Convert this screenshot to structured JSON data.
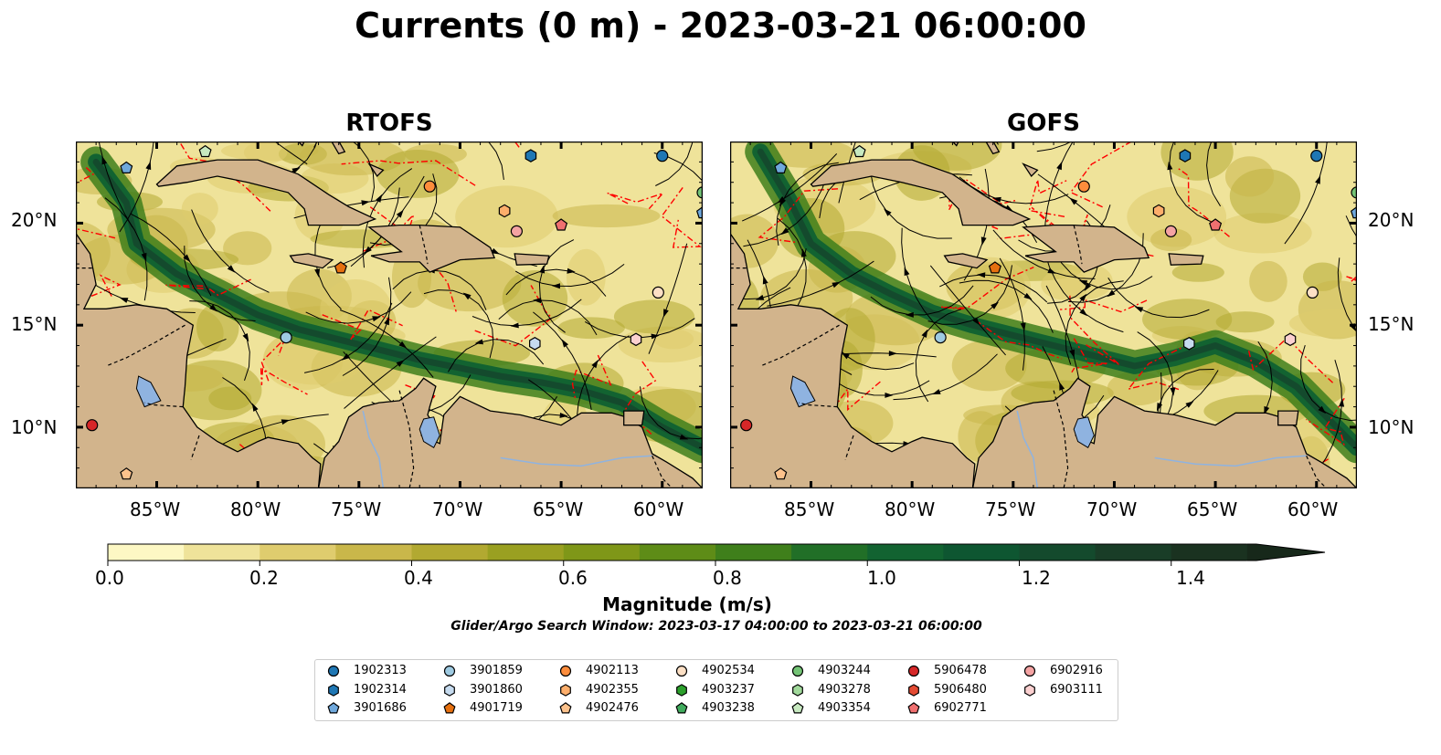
{
  "title": "Currents (0 m) - 2023-03-21 06:00:00",
  "panels": [
    {
      "title": "RTOFS"
    },
    {
      "title": "GOFS"
    }
  ],
  "lat_ticks": [
    "20°N",
    "15°N",
    "10°N"
  ],
  "lon_ticks": [
    "85°W",
    "80°W",
    "75°W",
    "70°W",
    "65°W",
    "60°W"
  ],
  "map_extent": {
    "lon": [
      -89,
      -58
    ],
    "lat": [
      7,
      24
    ]
  },
  "colorbar": {
    "label": "Magnitude (m/s)",
    "ticks": [
      "0.0",
      "0.2",
      "0.4",
      "0.6",
      "0.8",
      "1.0",
      "1.2",
      "1.4"
    ],
    "range": [
      0,
      1.6
    ],
    "extend": "max",
    "colors": [
      "#fdf8c4",
      "#efe39a",
      "#dfcc6e",
      "#c9b74a",
      "#b2a931",
      "#9aa021",
      "#7f9718",
      "#5e8c17",
      "#3f7f1b",
      "#216f27",
      "#126331",
      "#0e5631",
      "#144a2d",
      "#193d27",
      "#1a3220",
      "#17281a"
    ]
  },
  "search_window": "Glider/Argo Search Window: 2023-03-17 04:00:00 to 2023-03-21 06:00:00",
  "colors": {
    "land": "#d2b48c",
    "lakes": "#8fb3e0",
    "eez": "#ff0000",
    "stream": "#000000"
  },
  "legend": [
    {
      "id": "1902313",
      "marker": "circle",
      "color": "#1f77b4"
    },
    {
      "id": "1902314",
      "marker": "hexagon",
      "color": "#1f77b4"
    },
    {
      "id": "3901686",
      "marker": "pentagon",
      "color": "#6fa8dc"
    },
    {
      "id": "3901859",
      "marker": "circle",
      "color": "#9ecae1"
    },
    {
      "id": "3901860",
      "marker": "hexagon",
      "color": "#c6dbef"
    },
    {
      "id": "4901719",
      "marker": "pentagon",
      "color": "#e6700f"
    },
    {
      "id": "4902113",
      "marker": "circle",
      "color": "#fd8d3c"
    },
    {
      "id": "4902355",
      "marker": "hexagon",
      "color": "#fdae6b"
    },
    {
      "id": "4902476",
      "marker": "pentagon",
      "color": "#fdc28c"
    },
    {
      "id": "4902534",
      "marker": "circle",
      "color": "#fde0c5"
    },
    {
      "id": "4903237",
      "marker": "hexagon",
      "color": "#2ca02c"
    },
    {
      "id": "4903238",
      "marker": "pentagon",
      "color": "#41ab5d"
    },
    {
      "id": "4903244",
      "marker": "circle",
      "color": "#74c476"
    },
    {
      "id": "4903278",
      "marker": "hexagon",
      "color": "#a1d99b"
    },
    {
      "id": "4903354",
      "marker": "pentagon",
      "color": "#c7e9c0"
    },
    {
      "id": "5906478",
      "marker": "circle",
      "color": "#d62728"
    },
    {
      "id": "5906480",
      "marker": "hexagon",
      "color": "#e34a33"
    },
    {
      "id": "6902771",
      "marker": "pentagon",
      "color": "#f07070"
    },
    {
      "id": "6902916",
      "marker": "circle",
      "color": "#f4a3a3"
    },
    {
      "id": "6903111",
      "marker": "hexagon",
      "color": "#fbd0d0"
    }
  ],
  "floats_on_map": [
    {
      "id": "3901686",
      "lon": -86.5,
      "lat": 22.7
    },
    {
      "id": "4903354",
      "lon": -82.6,
      "lat": 23.5
    },
    {
      "id": "1902314",
      "lon": -66.5,
      "lat": 23.3
    },
    {
      "id": "1902313",
      "lon": -60.0,
      "lat": 23.3
    },
    {
      "id": "4903244",
      "lon": -58.0,
      "lat": 21.5
    },
    {
      "id": "3901686",
      "lon": -58.0,
      "lat": 20.5
    },
    {
      "id": "4902113",
      "lon": -71.5,
      "lat": 21.8
    },
    {
      "id": "4902355",
      "lon": -67.8,
      "lat": 20.6
    },
    {
      "id": "6902916",
      "lon": -67.2,
      "lat": 19.6
    },
    {
      "id": "6902771",
      "lon": -65.0,
      "lat": 19.9
    },
    {
      "id": "4901719",
      "lon": -75.9,
      "lat": 17.8
    },
    {
      "id": "4902534",
      "lon": -60.2,
      "lat": 16.6
    },
    {
      "id": "3901859",
      "lon": -78.6,
      "lat": 14.4
    },
    {
      "id": "3901860",
      "lon": -66.3,
      "lat": 14.1
    },
    {
      "id": "6903111",
      "lon": -61.3,
      "lat": 14.3
    },
    {
      "id": "5906478",
      "lon": -88.2,
      "lat": 10.1
    },
    {
      "id": "4902476",
      "lon": -86.5,
      "lat": 7.7
    }
  ]
}
